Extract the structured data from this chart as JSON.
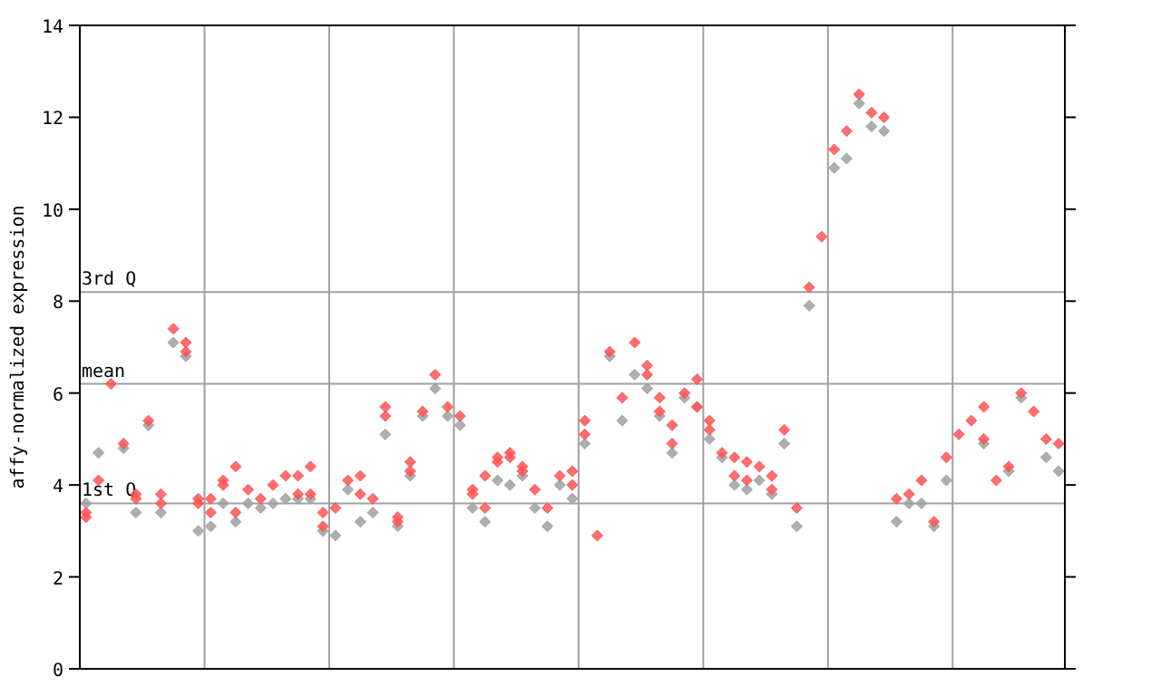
{
  "chart_data": {
    "type": "scatter",
    "ylabel": "affy-normalized expression",
    "marker": "diamond",
    "grid": "x",
    "categories": [
      null,
      null,
      null,
      null,
      null,
      null,
      null,
      null,
      null,
      null,
      null,
      null,
      null,
      null,
      null,
      null,
      null,
      null,
      null,
      null,
      null,
      null,
      null,
      null,
      null,
      null,
      null,
      null,
      null,
      null,
      null,
      null,
      null,
      null,
      null,
      null,
      null,
      null,
      null,
      null,
      null,
      null,
      null,
      null,
      null,
      null,
      null,
      null,
      null,
      null,
      null,
      null,
      null,
      null,
      null,
      null,
      null,
      null,
      null,
      null,
      null,
      null,
      null,
      null,
      null,
      null,
      null,
      null,
      null,
      null,
      null,
      null,
      null,
      null,
      null,
      null,
      null,
      null,
      null
    ],
    "ylim": [
      0,
      14
    ],
    "yticks": [
      0,
      2,
      4,
      6,
      8,
      10,
      12,
      14
    ],
    "ref_lines": [
      {
        "axis": "y",
        "value": 8.2,
        "label": "3rd Q",
        "color": "#a0a0a0"
      },
      {
        "axis": "y",
        "value": 6.2,
        "label": "mean",
        "color": "#a0a0a0"
      },
      {
        "axis": "y",
        "value": 3.6,
        "label": "1st Q",
        "color": "#a0a0a0"
      }
    ],
    "series": [
      {
        "color": "#a0a0a0",
        "values": [
          3.6,
          4.7,
          null,
          4.8,
          3.4,
          5.3,
          3.4,
          7.1,
          6.8,
          3.0,
          3.1,
          3.6,
          3.2,
          3.6,
          3.5,
          3.6,
          3.7,
          3.7,
          3.7,
          3.0,
          2.9,
          3.9,
          3.2,
          3.4,
          5.1,
          3.1,
          4.2,
          5.5,
          6.1,
          5.5,
          5.3,
          3.5,
          3.2,
          4.1,
          4.0,
          4.2,
          3.5,
          3.1,
          4.0,
          3.7,
          4.9,
          null,
          6.8,
          5.4,
          6.4,
          6.1,
          5.5,
          4.7,
          5.9,
          5.7,
          5.0,
          4.6,
          4.0,
          3.9,
          4.1,
          3.8,
          4.9,
          3.1,
          7.9,
          null,
          10.9,
          11.1,
          12.3,
          11.8,
          11.7,
          3.2,
          3.6,
          3.6,
          3.1,
          4.1,
          null,
          null,
          4.9,
          null,
          4.3,
          5.9,
          null,
          4.6,
          4.3
        ]
      },
      {
        "color": "#ff5555",
        "values": [
          3.4,
          4.1,
          6.2,
          4.9,
          3.8,
          5.4,
          3.8,
          7.4,
          7.1,
          3.7,
          3.7,
          4.1,
          4.4,
          3.9,
          3.7,
          4.0,
          4.2,
          4.2,
          4.4,
          3.4,
          3.5,
          4.1,
          4.2,
          3.7,
          5.7,
          3.3,
          4.5,
          5.6,
          6.4,
          5.7,
          5.5,
          3.9,
          4.2,
          4.6,
          4.7,
          4.4,
          3.9,
          3.5,
          4.2,
          4.3,
          5.4,
          2.9,
          6.9,
          5.9,
          7.1,
          6.6,
          5.9,
          5.3,
          6.0,
          6.3,
          5.4,
          4.7,
          4.6,
          4.5,
          4.4,
          4.2,
          5.2,
          3.5,
          8.3,
          9.4,
          11.3,
          11.7,
          12.5,
          12.1,
          12.0,
          3.7,
          3.8,
          4.1,
          3.2,
          4.6,
          5.1,
          5.4,
          5.7,
          4.1,
          4.4,
          6.0,
          5.6,
          5.0,
          4.9
        ]
      },
      {
        "color": "#ff5555",
        "values": [
          3.3,
          null,
          null,
          null,
          3.7,
          null,
          3.6,
          null,
          6.9,
          3.6,
          3.4,
          4.0,
          3.4,
          null,
          null,
          null,
          null,
          3.8,
          3.8,
          3.1,
          null,
          null,
          3.8,
          null,
          5.5,
          3.2,
          4.3,
          null,
          null,
          null,
          null,
          3.8,
          3.5,
          4.5,
          4.6,
          4.3,
          null,
          null,
          null,
          4.0,
          5.1,
          null,
          null,
          null,
          null,
          6.4,
          5.6,
          4.9,
          null,
          5.7,
          5.2,
          null,
          4.2,
          4.1,
          null,
          3.9,
          null,
          null,
          null,
          null,
          null,
          null,
          null,
          null,
          null,
          null,
          null,
          null,
          null,
          null,
          null,
          null,
          5.0,
          null,
          null,
          null,
          null,
          null,
          null
        ]
      }
    ]
  }
}
